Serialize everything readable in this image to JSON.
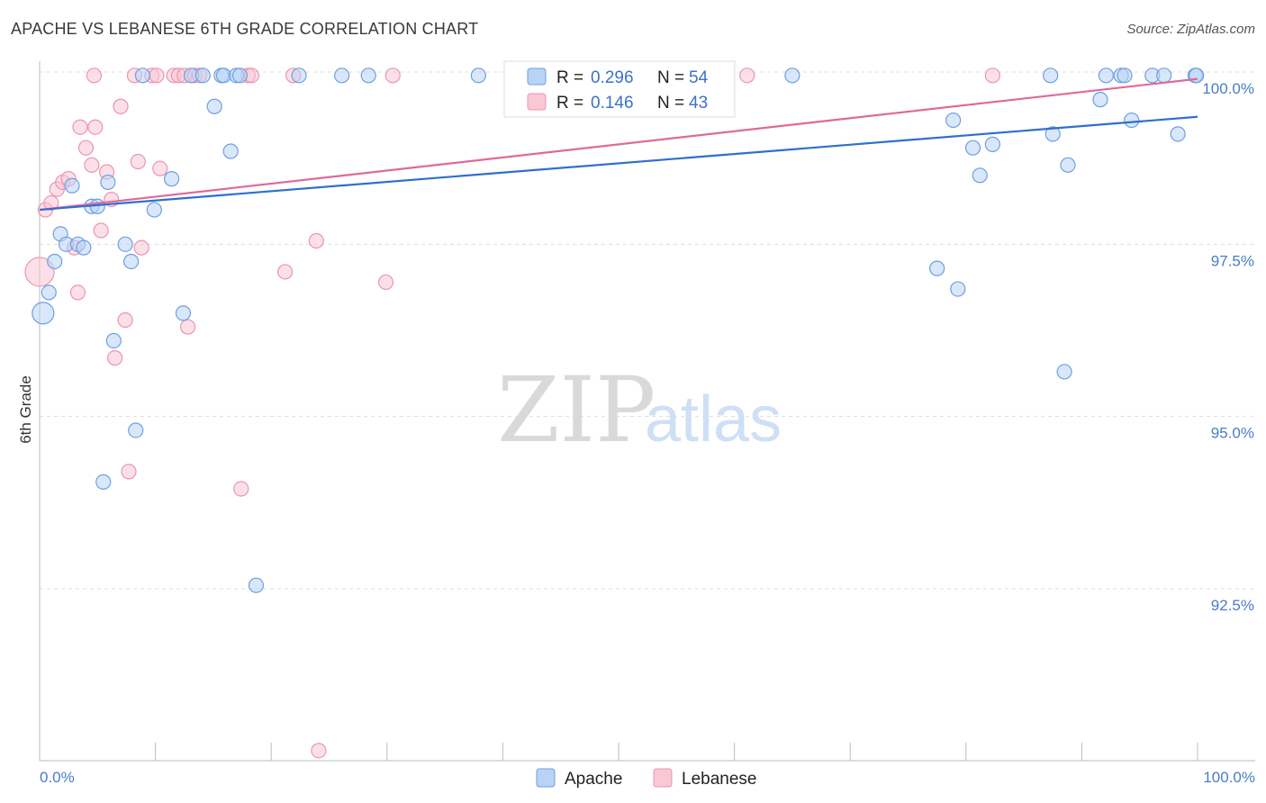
{
  "header": {
    "title": "APACHE VS LEBANESE 6TH GRADE CORRELATION CHART",
    "source": "Source: ZipAtlas.com"
  },
  "watermark": {
    "part1": "ZIP",
    "part2": "atlas"
  },
  "colors": {
    "apache_fill": "#b8d3f5",
    "apache_stroke": "#6f9fe0",
    "apache_line": "#2f6fce",
    "lebanese_fill": "#f9c7d6",
    "lebanese_stroke": "#ec94b0",
    "lebanese_line": "#e0689a",
    "grid": "#dddddd",
    "tick_text": "#4a7cc6"
  },
  "legend": {
    "apache": {
      "r_label": "R = ",
      "r_value": "0.296",
      "n_label": "N = ",
      "n_value": "54"
    },
    "lebanese": {
      "r_label": "R = ",
      "r_value": "0.146",
      "n_label": "N = ",
      "n_value": "43"
    }
  },
  "chart_data": {
    "type": "scatter",
    "title": "APACHE VS LEBANESE 6TH GRADE CORRELATION CHART",
    "xlabel": "",
    "ylabel": "6th Grade",
    "xlim": [
      0,
      100
    ],
    "ylim": [
      90.0,
      100.4
    ],
    "x_tick_labels": [
      "0.0%",
      "100.0%"
    ],
    "y_ticks": [
      {
        "value": 100.0,
        "label": "100.0%"
      },
      {
        "value": 97.5,
        "label": "97.5%"
      },
      {
        "value": 95.0,
        "label": "95.0%"
      },
      {
        "value": 92.5,
        "label": "92.5%"
      }
    ],
    "series": [
      {
        "name": "Apache",
        "trend": {
          "x": [
            0,
            100
          ],
          "y": [
            98.0,
            99.35
          ]
        },
        "points": [
          {
            "x": 0.3,
            "y": 96.5,
            "r": 2
          },
          {
            "x": 0.8,
            "y": 96.8,
            "r": 1
          },
          {
            "x": 1.3,
            "y": 97.25,
            "r": 1
          },
          {
            "x": 1.8,
            "y": 97.65,
            "r": 1
          },
          {
            "x": 2.3,
            "y": 97.5,
            "r": 1
          },
          {
            "x": 2.8,
            "y": 98.35,
            "r": 1
          },
          {
            "x": 3.3,
            "y": 97.5,
            "r": 1
          },
          {
            "x": 3.8,
            "y": 97.45,
            "r": 1
          },
          {
            "x": 4.5,
            "y": 98.05,
            "r": 1
          },
          {
            "x": 5.0,
            "y": 98.05,
            "r": 1
          },
          {
            "x": 5.5,
            "y": 94.05,
            "r": 1
          },
          {
            "x": 5.9,
            "y": 98.4,
            "r": 1
          },
          {
            "x": 6.4,
            "y": 96.1,
            "r": 1
          },
          {
            "x": 7.4,
            "y": 97.5,
            "r": 1
          },
          {
            "x": 7.9,
            "y": 97.25,
            "r": 1
          },
          {
            "x": 8.3,
            "y": 94.8,
            "r": 1
          },
          {
            "x": 8.9,
            "y": 99.95,
            "r": 1
          },
          {
            "x": 9.9,
            "y": 98.0,
            "r": 1
          },
          {
            "x": 11.4,
            "y": 98.45,
            "r": 1
          },
          {
            "x": 12.4,
            "y": 96.5,
            "r": 1
          },
          {
            "x": 13.1,
            "y": 99.95,
            "r": 1
          },
          {
            "x": 14.1,
            "y": 99.95,
            "r": 1
          },
          {
            "x": 15.1,
            "y": 99.5,
            "r": 1
          },
          {
            "x": 15.7,
            "y": 99.95,
            "r": 1
          },
          {
            "x": 15.9,
            "y": 99.95,
            "r": 1
          },
          {
            "x": 16.5,
            "y": 98.85,
            "r": 1
          },
          {
            "x": 17.0,
            "y": 99.95,
            "r": 1
          },
          {
            "x": 17.3,
            "y": 99.95,
            "r": 1
          },
          {
            "x": 18.7,
            "y": 92.55,
            "r": 1
          },
          {
            "x": 22.4,
            "y": 99.95,
            "r": 1
          },
          {
            "x": 26.1,
            "y": 99.95,
            "r": 1
          },
          {
            "x": 28.4,
            "y": 99.95,
            "r": 1
          },
          {
            "x": 37.9,
            "y": 99.95,
            "r": 1
          },
          {
            "x": 65.0,
            "y": 99.95,
            "r": 1
          },
          {
            "x": 77.5,
            "y": 97.15,
            "r": 1
          },
          {
            "x": 78.9,
            "y": 99.3,
            "r": 1
          },
          {
            "x": 79.3,
            "y": 96.85,
            "r": 1
          },
          {
            "x": 80.6,
            "y": 98.9,
            "r": 1
          },
          {
            "x": 81.2,
            "y": 98.5,
            "r": 1
          },
          {
            "x": 82.3,
            "y": 98.95,
            "r": 1
          },
          {
            "x": 87.3,
            "y": 99.95,
            "r": 1
          },
          {
            "x": 87.5,
            "y": 99.1,
            "r": 1
          },
          {
            "x": 88.5,
            "y": 95.65,
            "r": 1
          },
          {
            "x": 88.8,
            "y": 98.65,
            "r": 1
          },
          {
            "x": 91.6,
            "y": 99.6,
            "r": 1
          },
          {
            "x": 92.1,
            "y": 99.95,
            "r": 1
          },
          {
            "x": 93.4,
            "y": 99.95,
            "r": 1
          },
          {
            "x": 93.7,
            "y": 99.95,
            "r": 1
          },
          {
            "x": 94.3,
            "y": 99.3,
            "r": 1
          },
          {
            "x": 96.1,
            "y": 99.95,
            "r": 1
          },
          {
            "x": 97.1,
            "y": 99.95,
            "r": 1
          },
          {
            "x": 98.3,
            "y": 99.1,
            "r": 1
          },
          {
            "x": 99.8,
            "y": 99.95,
            "r": 1
          },
          {
            "x": 99.9,
            "y": 99.95,
            "r": 1
          }
        ]
      },
      {
        "name": "Lebanese",
        "trend": {
          "x": [
            0,
            100
          ],
          "y": [
            98.0,
            99.9
          ]
        },
        "points": [
          {
            "x": 0.0,
            "y": 97.1,
            "r": 3
          },
          {
            "x": 0.5,
            "y": 98.0,
            "r": 1
          },
          {
            "x": 1.0,
            "y": 98.1,
            "r": 1
          },
          {
            "x": 1.5,
            "y": 98.3,
            "r": 1
          },
          {
            "x": 2.0,
            "y": 98.4,
            "r": 1
          },
          {
            "x": 2.5,
            "y": 98.45,
            "r": 1
          },
          {
            "x": 3.0,
            "y": 97.45,
            "r": 1
          },
          {
            "x": 3.3,
            "y": 96.8,
            "r": 1
          },
          {
            "x": 3.5,
            "y": 99.2,
            "r": 1
          },
          {
            "x": 4.0,
            "y": 98.9,
            "r": 1
          },
          {
            "x": 4.5,
            "y": 98.65,
            "r": 1
          },
          {
            "x": 4.7,
            "y": 99.95,
            "r": 1
          },
          {
            "x": 4.8,
            "y": 99.2,
            "r": 1
          },
          {
            "x": 5.3,
            "y": 97.7,
            "r": 1
          },
          {
            "x": 5.8,
            "y": 98.55,
            "r": 1
          },
          {
            "x": 6.2,
            "y": 98.15,
            "r": 1
          },
          {
            "x": 6.5,
            "y": 95.85,
            "r": 1
          },
          {
            "x": 7.0,
            "y": 99.5,
            "r": 1
          },
          {
            "x": 7.4,
            "y": 96.4,
            "r": 1
          },
          {
            "x": 7.7,
            "y": 94.2,
            "r": 1
          },
          {
            "x": 8.2,
            "y": 99.95,
            "r": 1
          },
          {
            "x": 8.5,
            "y": 98.7,
            "r": 1
          },
          {
            "x": 8.8,
            "y": 97.45,
            "r": 1
          },
          {
            "x": 9.7,
            "y": 99.95,
            "r": 1
          },
          {
            "x": 10.1,
            "y": 99.95,
            "r": 1
          },
          {
            "x": 10.4,
            "y": 98.6,
            "r": 1
          },
          {
            "x": 11.6,
            "y": 99.95,
            "r": 1
          },
          {
            "x": 12.0,
            "y": 99.95,
            "r": 1
          },
          {
            "x": 12.5,
            "y": 99.95,
            "r": 1
          },
          {
            "x": 12.8,
            "y": 96.3,
            "r": 1
          },
          {
            "x": 13.4,
            "y": 99.95,
            "r": 1
          },
          {
            "x": 13.8,
            "y": 99.95,
            "r": 1
          },
          {
            "x": 17.4,
            "y": 93.95,
            "r": 1
          },
          {
            "x": 18.0,
            "y": 99.95,
            "r": 1
          },
          {
            "x": 18.3,
            "y": 99.95,
            "r": 1
          },
          {
            "x": 21.2,
            "y": 97.1,
            "r": 1
          },
          {
            "x": 21.9,
            "y": 99.95,
            "r": 1
          },
          {
            "x": 23.9,
            "y": 97.55,
            "r": 1
          },
          {
            "x": 24.1,
            "y": 90.15,
            "r": 1
          },
          {
            "x": 29.9,
            "y": 96.95,
            "r": 1
          },
          {
            "x": 30.5,
            "y": 99.95,
            "r": 1
          },
          {
            "x": 61.1,
            "y": 99.95,
            "r": 1
          },
          {
            "x": 82.3,
            "y": 99.95,
            "r": 1
          }
        ]
      }
    ]
  }
}
